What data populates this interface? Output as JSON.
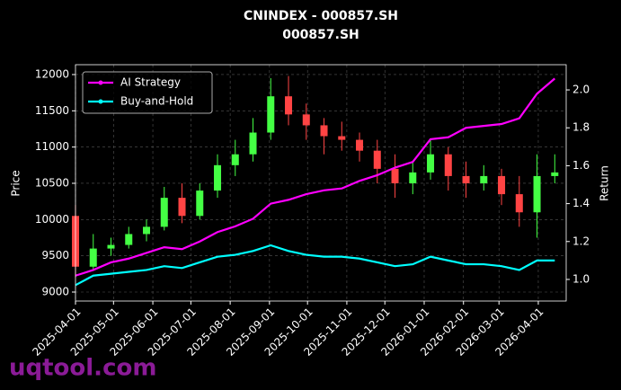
{
  "chart_data": {
    "type": "candlestick",
    "title": "CNINDEX - 000857.SH",
    "subtitle": "000857.SH",
    "ylabel": "Price",
    "y2label": "Return",
    "watermark": "uqtool.com",
    "x": [
      "2025-04-01",
      "2025-04-15",
      "2025-04-29",
      "2025-05-13",
      "2025-05-27",
      "2025-06-10",
      "2025-06-24",
      "2025-07-08",
      "2025-07-22",
      "2025-08-05",
      "2025-08-19",
      "2025-09-02",
      "2025-09-16",
      "2025-09-30",
      "2025-10-14",
      "2025-10-28",
      "2025-11-11",
      "2025-11-25",
      "2025-12-09",
      "2025-12-23",
      "2026-01-06",
      "2026-01-20",
      "2026-02-03",
      "2026-02-17",
      "2026-03-03",
      "2026-03-17",
      "2026-03-31",
      "2026-04-14"
    ],
    "open": [
      10050,
      9350,
      9600,
      9650,
      9800,
      9900,
      10300,
      10050,
      10400,
      10750,
      10900,
      11200,
      11700,
      11450,
      11300,
      11150,
      11100,
      10950,
      10700,
      10500,
      10650,
      10900,
      10600,
      10500,
      10600,
      10350,
      10100,
      10600
    ],
    "high": [
      10200,
      9800,
      9750,
      9900,
      10000,
      10450,
      10500,
      10500,
      10900,
      11100,
      11400,
      11950,
      11980,
      11600,
      11400,
      11350,
      11200,
      11100,
      10900,
      10800,
      11100,
      11000,
      10800,
      10750,
      10700,
      10600,
      10900,
      10900
    ],
    "low": [
      9200,
      9300,
      9500,
      9600,
      9700,
      9850,
      9950,
      10000,
      10300,
      10600,
      10800,
      11100,
      11300,
      11100,
      10900,
      10950,
      10800,
      10500,
      10300,
      10350,
      10550,
      10400,
      10300,
      10400,
      10200,
      9900,
      9750,
      10500
    ],
    "close": [
      9350,
      9600,
      9650,
      9800,
      9900,
      10300,
      10050,
      10400,
      10750,
      10900,
      11200,
      11700,
      11450,
      11300,
      11150,
      11100,
      10950,
      10700,
      10500,
      10650,
      10900,
      10600,
      10500,
      10600,
      10350,
      10100,
      10600,
      10650
    ],
    "up_color": "#44ff44",
    "down_color": "#ff4444",
    "series": [
      {
        "name": "AI Strategy",
        "color": "#ff00ff",
        "axis": "y2",
        "values": [
          1.02,
          1.05,
          1.09,
          1.11,
          1.14,
          1.17,
          1.16,
          1.2,
          1.25,
          1.28,
          1.32,
          1.4,
          1.42,
          1.45,
          1.47,
          1.48,
          1.52,
          1.55,
          1.59,
          1.62,
          1.74,
          1.75,
          1.8,
          1.81,
          1.82,
          1.85,
          1.98,
          2.06
        ]
      },
      {
        "name": "Buy-and-Hold",
        "color": "#00ffff",
        "axis": "y2",
        "values": [
          0.97,
          1.02,
          1.03,
          1.04,
          1.05,
          1.07,
          1.06,
          1.09,
          1.12,
          1.13,
          1.15,
          1.18,
          1.15,
          1.13,
          1.12,
          1.12,
          1.11,
          1.09,
          1.07,
          1.08,
          1.12,
          1.1,
          1.08,
          1.08,
          1.07,
          1.05,
          1.1,
          1.1
        ]
      }
    ],
    "xlim": [
      "2025-04-01",
      "2026-04-23"
    ],
    "xticks": [
      "2025-04-01",
      "2025-05-01",
      "2025-06-01",
      "2025-07-01",
      "2025-08-01",
      "2025-09-01",
      "2025-10-01",
      "2025-11-01",
      "2025-12-01",
      "2026-01-01",
      "2026-02-01",
      "2026-03-01",
      "2026-04-01"
    ],
    "ylim": [
      8876,
      12136
    ],
    "yticks": [
      9000,
      9500,
      10000,
      10500,
      11000,
      11500,
      12000
    ],
    "y2lim": [
      0.886,
      2.133
    ],
    "y2ticks": [
      1.0,
      1.2,
      1.4,
      1.6,
      1.8,
      2.0
    ],
    "y2tick_labels": [
      "1.0",
      "1.2",
      "1.4",
      "1.6",
      "1.8",
      "2.0"
    ],
    "grid": true,
    "legend": "upper left"
  }
}
